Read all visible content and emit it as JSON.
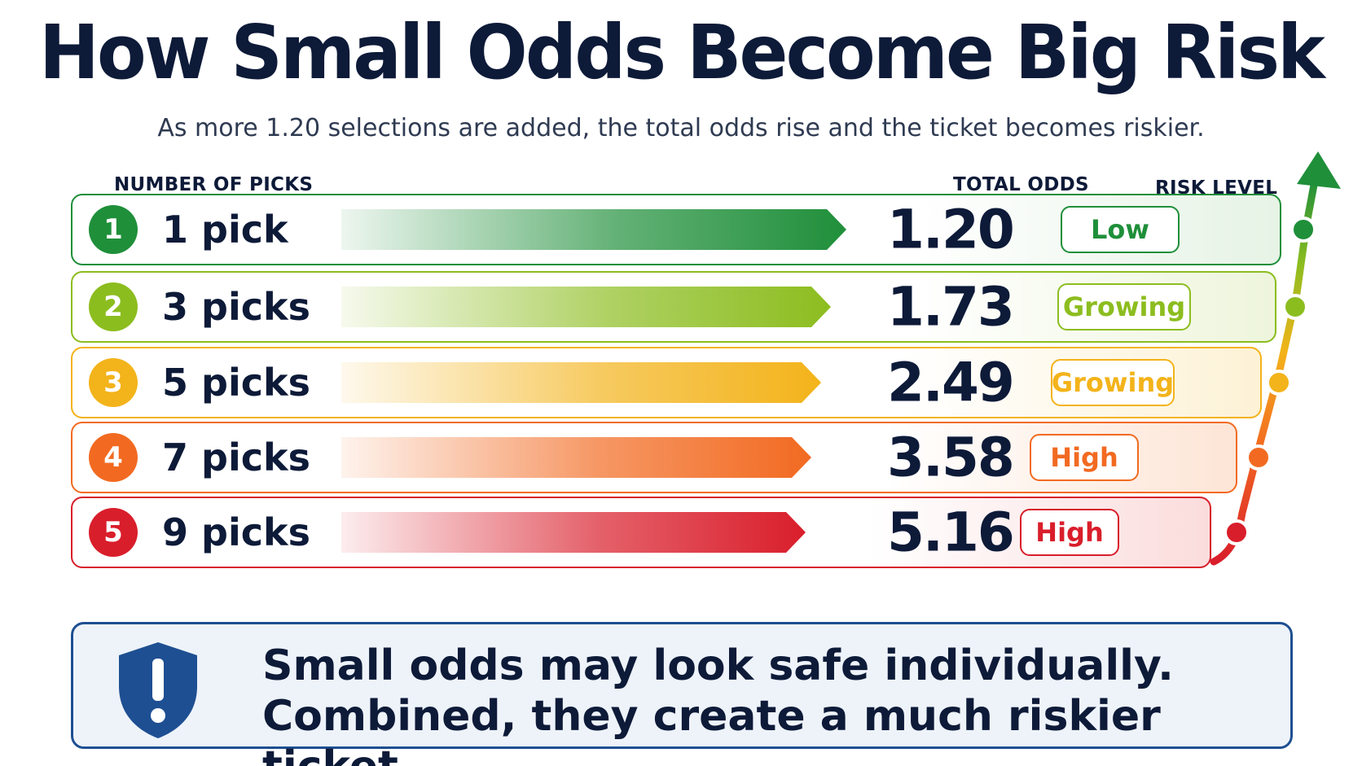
{
  "chart_data": {
    "type": "bar",
    "title": "How Small Odds Become Big Risk",
    "subtitle": "As more 1.20 selections are added, the total odds rise and the ticket becomes riskier.",
    "headers": {
      "picks": "NUMBER OF PICKS",
      "odds": "TOTAL ODDS",
      "risk": "RISK LEVEL"
    },
    "categories": [
      "1 pick",
      "3 picks",
      "5 picks",
      "7 picks",
      "9 picks"
    ],
    "values": [
      1.2,
      1.73,
      2.49,
      3.58,
      5.16
    ],
    "rows": [
      {
        "num": "1",
        "label": "1 pick",
        "odds": "1.20",
        "risk": "Low",
        "color": "#1f8f3a",
        "light": "#e6f3e5",
        "bar_frac": 1.0
      },
      {
        "num": "2",
        "label": "3 picks",
        "odds": "1.73",
        "risk": "Growing",
        "color": "#8cbd1f",
        "light": "#eef5dc",
        "bar_frac": 0.97
      },
      {
        "num": "3",
        "label": "5 picks",
        "odds": "2.49",
        "risk": "Growing",
        "color": "#f3b31a",
        "light": "#fdf2d6",
        "bar_frac": 0.95
      },
      {
        "num": "4",
        "label": "7 picks",
        "odds": "3.58",
        "risk": "High",
        "color": "#f26a21",
        "light": "#fde5d6",
        "bar_frac": 0.93
      },
      {
        "num": "5",
        "label": "9 picks",
        "odds": "5.16",
        "risk": "High",
        "color": "#d91e2b",
        "light": "#fbdcdc",
        "bar_frac": 0.92
      }
    ],
    "grid": false,
    "legend": "none"
  },
  "callout": {
    "line1": "Small odds may look safe individually.",
    "line2": "Combined, they create a much riskier ticket.",
    "icon": "shield-exclamation-icon",
    "color": "#1e4f92"
  }
}
